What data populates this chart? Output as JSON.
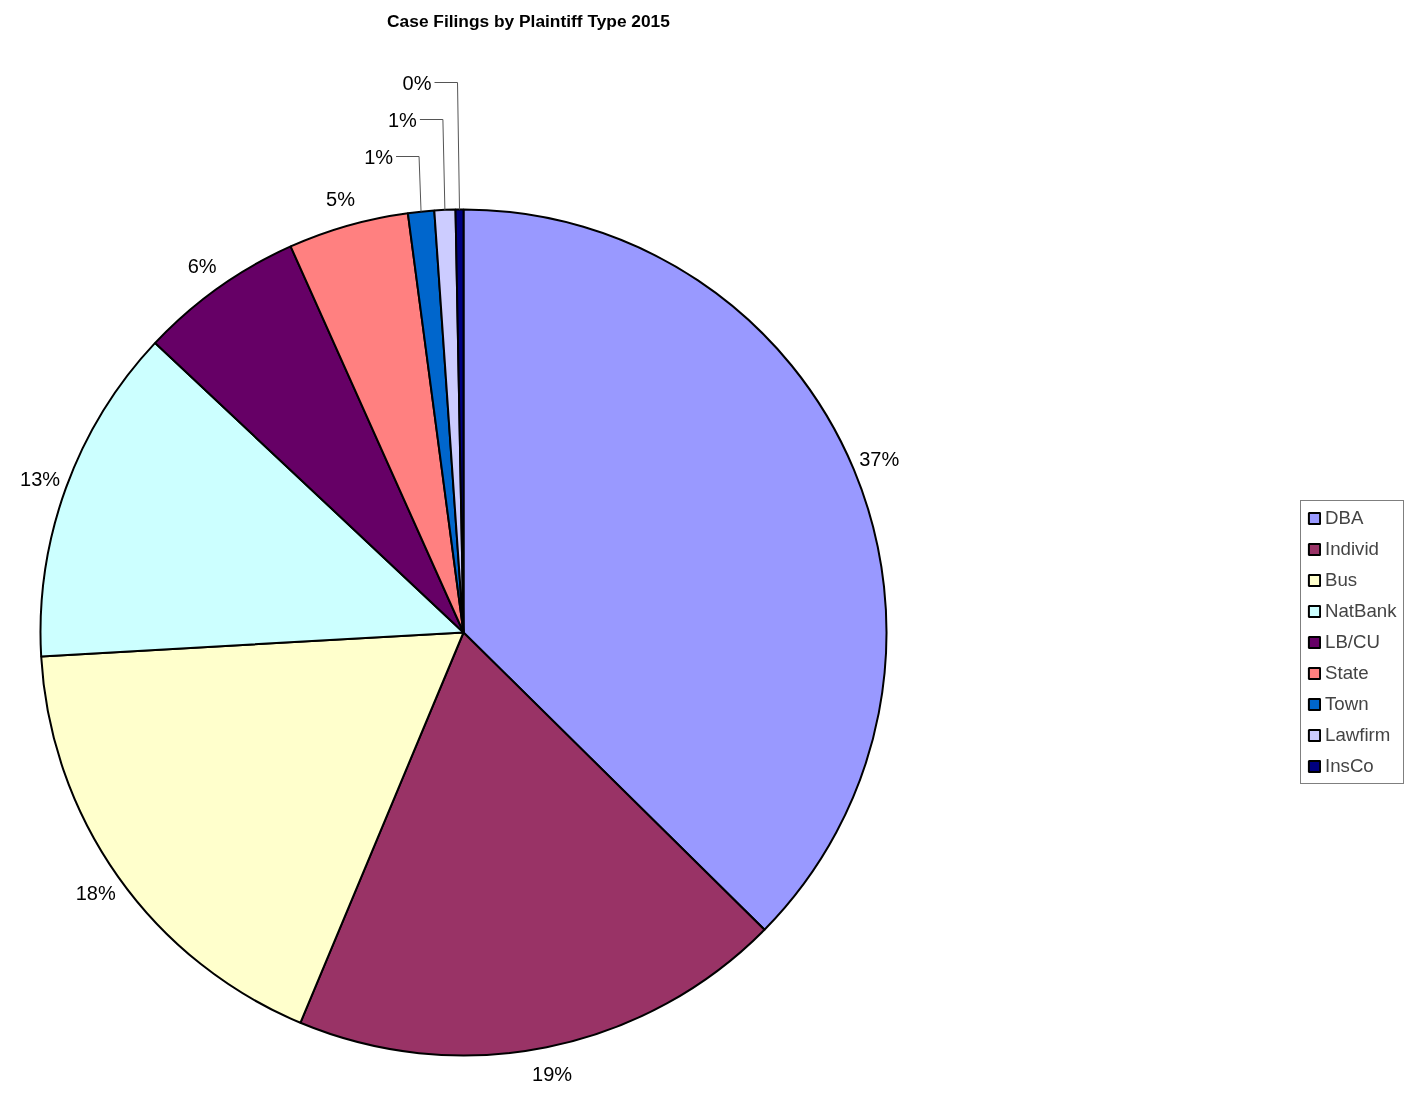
{
  "chart_data": {
    "type": "pie",
    "title": "Case Filings by Plaintiff Type 2015",
    "categories": [
      "DBA",
      "Individ",
      "Bus",
      "NatBank",
      "LB/CU",
      "State",
      "Town",
      "Lawfirm",
      "InsCo"
    ],
    "values": [
      37.4,
      18.9,
      17.8,
      12.9,
      6.3,
      4.6,
      1.0,
      0.8,
      0.3
    ],
    "value_labels": [
      "37%",
      "19%",
      "18%",
      "13%",
      "6%",
      "5%",
      "1%",
      "1%",
      "0%"
    ],
    "colors": [
      "#9999ff",
      "#993366",
      "#ffffcc",
      "#ccffff",
      "#660066",
      "#ff8080",
      "#0066cc",
      "#ccccff",
      "#000080"
    ],
    "legend": "right"
  }
}
